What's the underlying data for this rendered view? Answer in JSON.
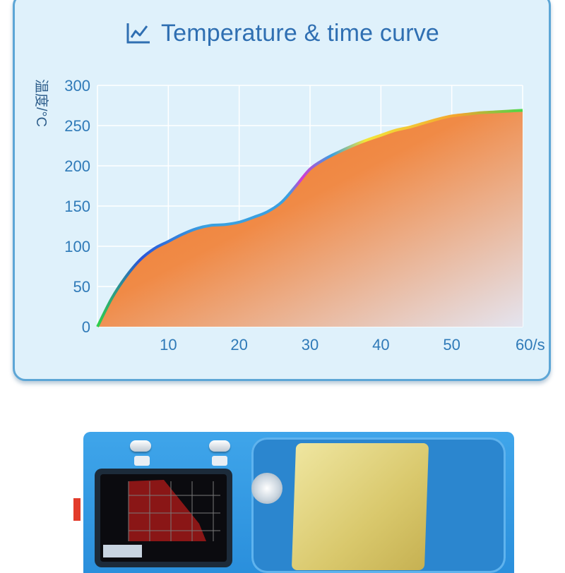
{
  "chart_data": {
    "type": "area",
    "title": "Temperature & time curve",
    "ylabel": "温度/°C",
    "xlabel": "",
    "x_ticks": [
      "10",
      "20",
      "30",
      "40",
      "50",
      "60/s"
    ],
    "y_ticks": [
      "0",
      "50",
      "100",
      "150",
      "200",
      "250",
      "300"
    ],
    "xlim": [
      0,
      60
    ],
    "ylim": [
      0,
      300
    ],
    "grid": true,
    "series": [
      {
        "x": [
          0,
          2,
          4,
          6,
          8,
          10,
          12,
          14,
          16,
          18,
          20,
          22,
          24,
          26,
          28,
          30,
          32,
          34,
          36,
          38,
          40,
          42,
          44,
          46,
          48,
          50,
          52,
          54,
          56,
          58,
          60
        ],
        "y": [
          0,
          35,
          62,
          83,
          97,
          106,
          115,
          122,
          126,
          127,
          130,
          136,
          143,
          155,
          175,
          196,
          208,
          217,
          225,
          232,
          238,
          244,
          248,
          253,
          258,
          262,
          264,
          266,
          267,
          268,
          269
        ]
      }
    ],
    "colors": {
      "fill_top": "#f07a2c",
      "fill_bottom": "#e6e4ee",
      "grid": "#ffffff",
      "axis": "#2f7ab8"
    }
  },
  "header": {
    "icon": "line-chart-icon"
  }
}
